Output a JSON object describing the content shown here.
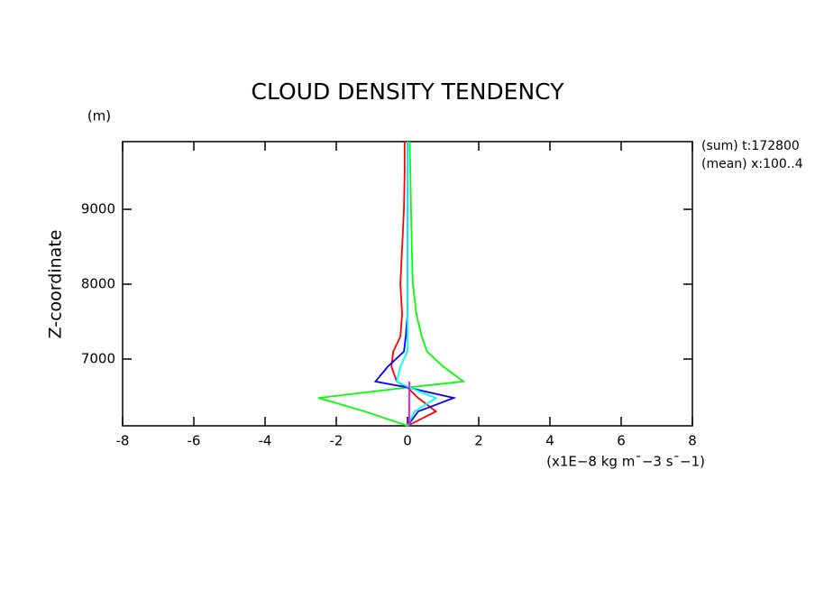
{
  "chart_data": {
    "type": "line",
    "title": "CLOUD DENSITY TENDENCY",
    "y_unit": "(m)",
    "ylabel": "Z-coordinate",
    "xlabel": "(x1E−8 kg m¯−3 s¯−1)",
    "annotations": [
      "(sum) t:172800",
      "(mean) x:100..4"
    ],
    "xlim": [
      -8,
      8
    ],
    "xticks": [
      -8,
      -6,
      -4,
      -2,
      0,
      2,
      4,
      6,
      8
    ],
    "ylim": [
      6108,
      9904
    ],
    "yticks": [
      7000,
      8000,
      9000
    ],
    "y": [
      6108,
      6300,
      6480,
      6620,
      6700,
      6900,
      7100,
      7300,
      7600,
      8000,
      8500,
      9000,
      9500,
      9904
    ],
    "series": [
      {
        "color": "#00ff00",
        "values": [
          0,
          -1.2,
          -2.5,
          0,
          1.57,
          1.0,
          0.55,
          0.4,
          0.25,
          0.15,
          0.12,
          0.1,
          0.08,
          0.06
        ]
      },
      {
        "color": "#ff0000",
        "values": [
          0,
          0.8,
          0.3,
          0,
          -0.3,
          -0.45,
          -0.4,
          -0.2,
          -0.15,
          -0.2,
          -0.15,
          -0.1,
          -0.08,
          -0.08
        ]
      },
      {
        "color": "#0000ff",
        "values": [
          0,
          0.3,
          1.3,
          0,
          -0.9,
          -0.55,
          -0.1,
          -0.05,
          0,
          0,
          0,
          0,
          0,
          0
        ]
      },
      {
        "color": "#00ffff",
        "values": [
          0,
          0.2,
          0.8,
          0.05,
          -0.3,
          -0.2,
          0,
          0,
          0,
          0,
          0,
          0,
          0,
          0
        ]
      },
      {
        "color": "#ff00ff",
        "values": [
          0.05,
          0.05,
          0.05,
          0.05,
          0.05,
          null,
          null,
          null,
          null,
          null,
          null,
          null,
          null,
          null
        ]
      }
    ]
  }
}
